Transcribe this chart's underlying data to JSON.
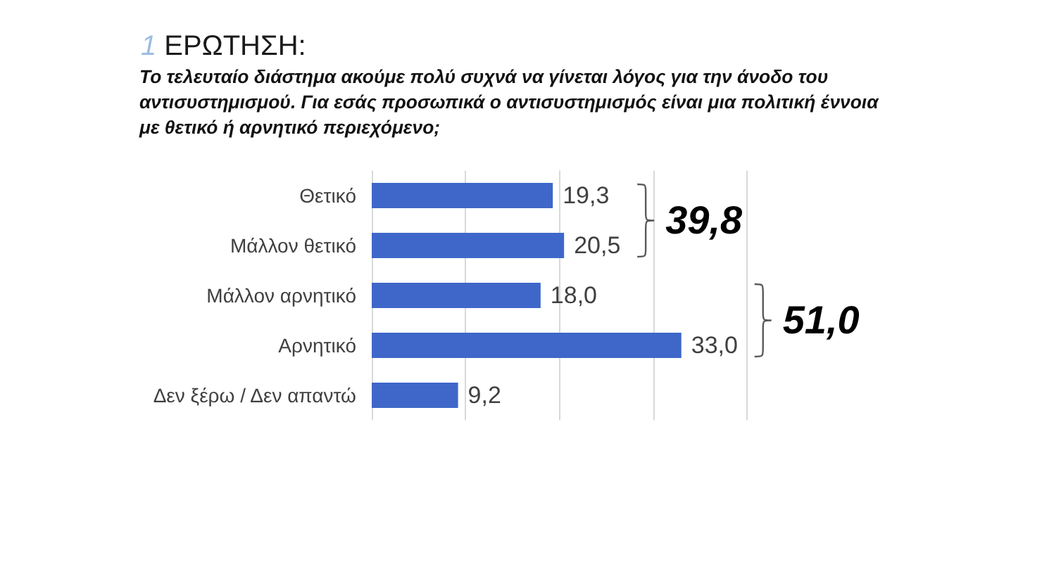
{
  "chart_data": {
    "type": "bar",
    "orientation": "horizontal",
    "title": "1 ΕΡΩΤΗΣΗ:",
    "subtitle": "Το τελευταίο διάστημα ακούμε πολύ συχνά να γίνεται λόγος για την άνοδο του αντισυστημισμού. Για εσάς προσωπικά ο αντισυστημισμός είναι μια πολιτική έννοια με θετικό ή αρνητικό περιεχόμενο;",
    "categories": [
      "Θετικό",
      "Μάλλον θετικό",
      "Μάλλον αρνητικό",
      "Αρνητικό",
      "Δεν ξέρω / Δεν απαντώ"
    ],
    "values": [
      19.3,
      20.5,
      18.0,
      33.0,
      9.2
    ],
    "value_labels": [
      "19,3",
      "20,5",
      "18,0",
      "33,0",
      "9,2"
    ],
    "color": "#3e67c9",
    "xlim": [
      0,
      40
    ],
    "xticks": [
      {
        "value": 0,
        "label": null
      },
      {
        "value": 10,
        "label": null
      },
      {
        "value": 20,
        "label": null
      },
      {
        "value": 30,
        "label": null
      },
      {
        "value": 40,
        "label": null
      }
    ],
    "grid": "x",
    "tick_labels": "y",
    "annotations": [
      "39,8",
      "51,0"
    ]
  }
}
